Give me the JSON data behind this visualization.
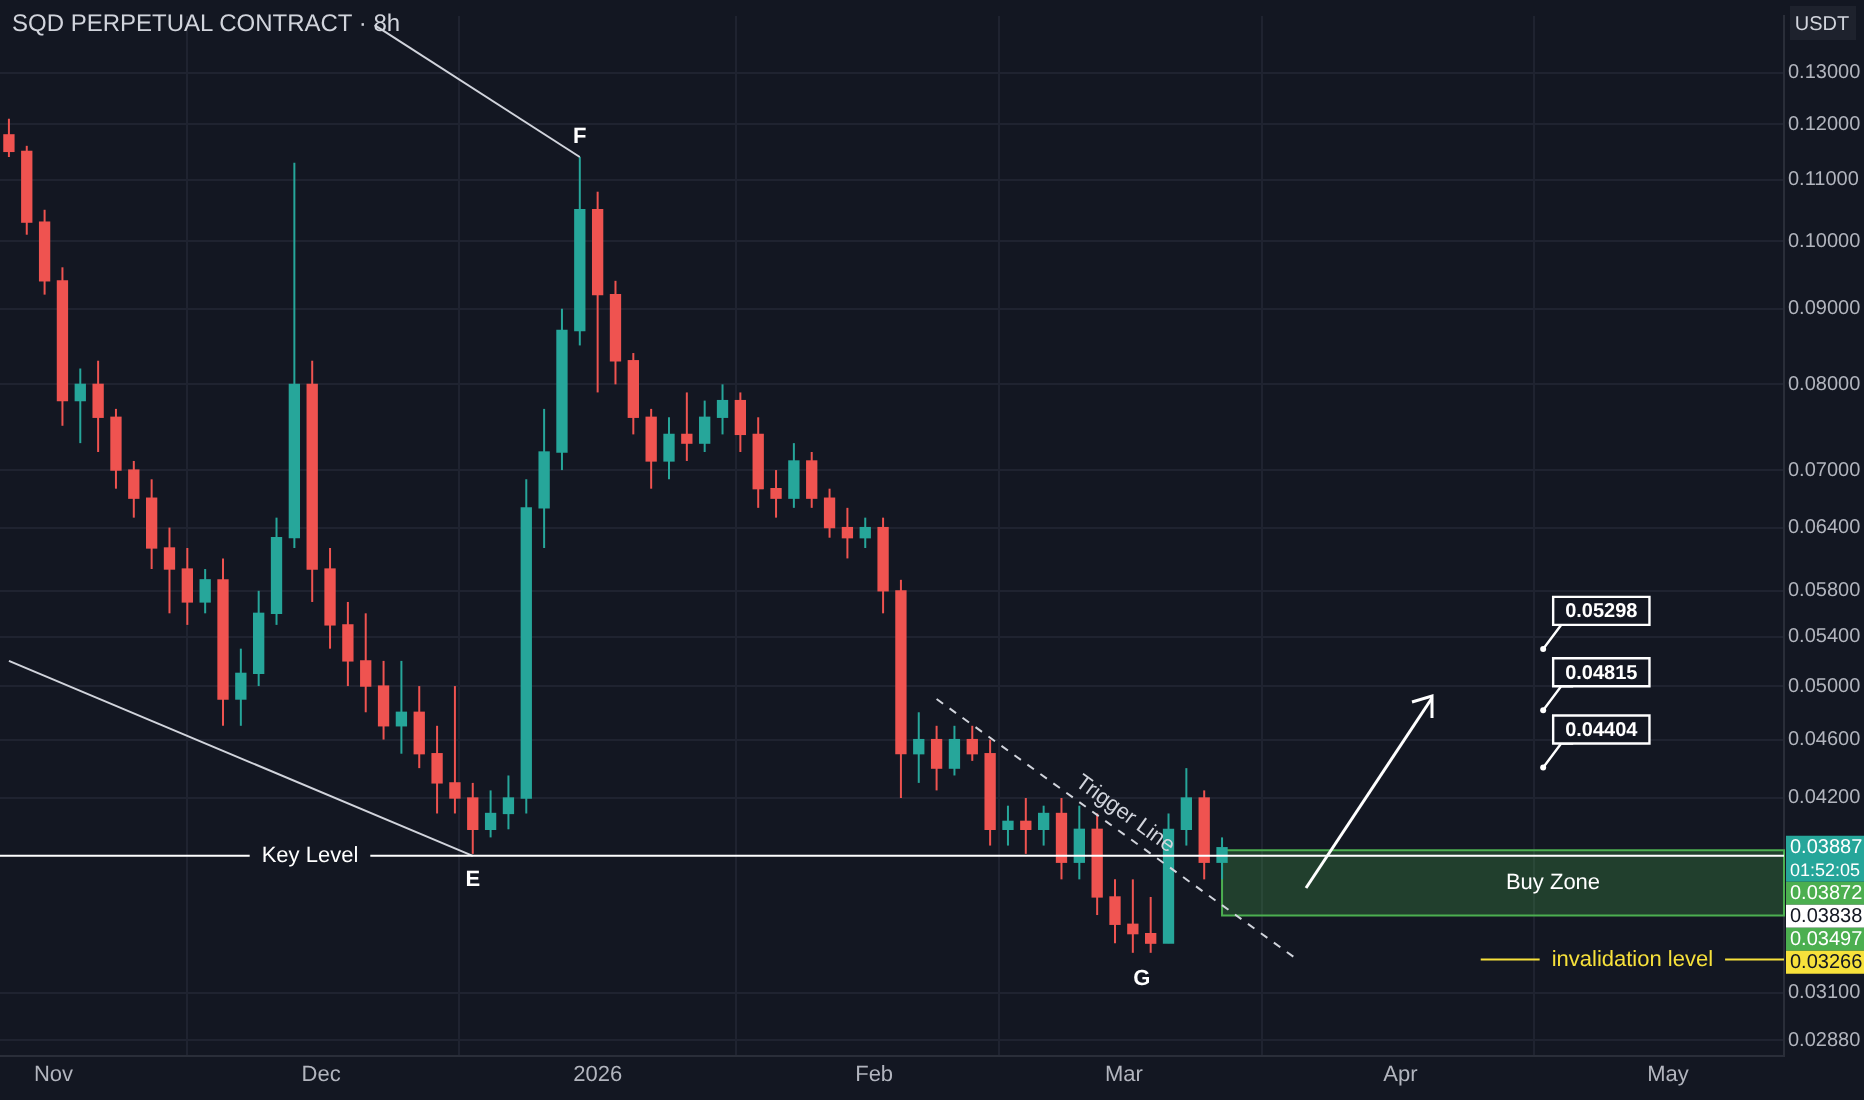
{
  "chart_data": {
    "type": "candlestick",
    "title": "SQD PERPETUAL CONTRACT · 8h",
    "ylabel": "USDT",
    "x": [
      "2025-10-27",
      "2025-10-29",
      "2025-10-31",
      "2025-11-02",
      "2025-11-04",
      "2025-11-06",
      "2025-11-08",
      "2025-11-10",
      "2025-11-12",
      "2025-11-14",
      "2025-11-16",
      "2025-11-18",
      "2025-11-20",
      "2025-11-22",
      "2025-11-24",
      "2025-11-26",
      "2025-11-28",
      "2025-11-30",
      "2025-12-02",
      "2025-12-04",
      "2025-12-06",
      "2025-12-08",
      "2025-12-10",
      "2025-12-12",
      "2025-12-14",
      "2025-12-16",
      "2025-12-18",
      "2025-12-20",
      "2025-12-22",
      "2025-12-24",
      "2025-12-26",
      "2025-12-28",
      "2025-12-30",
      "2026-01-01",
      "2026-01-03",
      "2026-01-05",
      "2026-01-07",
      "2026-01-09",
      "2026-01-11",
      "2026-01-13",
      "2026-01-15",
      "2026-01-17",
      "2026-01-19",
      "2026-01-21",
      "2026-01-23",
      "2026-01-25",
      "2026-01-27",
      "2026-01-29",
      "2026-01-31",
      "2026-02-02",
      "2026-02-04",
      "2026-02-06",
      "2026-02-08",
      "2026-02-10",
      "2026-02-12",
      "2026-02-14",
      "2026-02-16",
      "2026-02-18",
      "2026-02-20",
      "2026-02-22",
      "2026-02-24",
      "2026-02-26",
      "2026-02-28",
      "2026-03-02",
      "2026-03-04",
      "2026-03-06",
      "2026-03-08",
      "2026-03-10",
      "2026-03-12"
    ],
    "ohlc": [
      [
        0.118,
        0.121,
        0.114,
        0.115
      ],
      [
        0.115,
        0.116,
        0.101,
        0.103
      ],
      [
        0.103,
        0.105,
        0.092,
        0.094
      ],
      [
        0.094,
        0.096,
        0.075,
        0.078
      ],
      [
        0.078,
        0.082,
        0.073,
        0.08
      ],
      [
        0.08,
        0.083,
        0.072,
        0.076
      ],
      [
        0.076,
        0.077,
        0.068,
        0.07
      ],
      [
        0.07,
        0.071,
        0.065,
        0.067
      ],
      [
        0.067,
        0.069,
        0.06,
        0.062
      ],
      [
        0.062,
        0.064,
        0.056,
        0.06
      ],
      [
        0.06,
        0.062,
        0.055,
        0.057
      ],
      [
        0.057,
        0.06,
        0.056,
        0.059
      ],
      [
        0.059,
        0.061,
        0.047,
        0.049
      ],
      [
        0.049,
        0.053,
        0.047,
        0.051
      ],
      [
        0.051,
        0.058,
        0.05,
        0.056
      ],
      [
        0.056,
        0.065,
        0.055,
        0.063
      ],
      [
        0.063,
        0.113,
        0.062,
        0.08
      ],
      [
        0.08,
        0.083,
        0.057,
        0.06
      ],
      [
        0.06,
        0.062,
        0.053,
        0.055
      ],
      [
        0.055,
        0.057,
        0.05,
        0.052
      ],
      [
        0.052,
        0.056,
        0.048,
        0.05
      ],
      [
        0.05,
        0.052,
        0.046,
        0.047
      ],
      [
        0.047,
        0.052,
        0.045,
        0.048
      ],
      [
        0.048,
        0.05,
        0.044,
        0.045
      ],
      [
        0.045,
        0.047,
        0.041,
        0.043
      ],
      [
        0.043,
        0.05,
        0.041,
        0.042
      ],
      [
        0.042,
        0.043,
        0.0385,
        0.04
      ],
      [
        0.04,
        0.0425,
        0.0395,
        0.041
      ],
      [
        0.041,
        0.0435,
        0.04,
        0.042
      ],
      [
        0.042,
        0.069,
        0.041,
        0.066
      ],
      [
        0.066,
        0.077,
        0.062,
        0.072
      ],
      [
        0.072,
        0.09,
        0.07,
        0.087
      ],
      [
        0.087,
        0.114,
        0.085,
        0.105
      ],
      [
        0.105,
        0.108,
        0.079,
        0.092
      ],
      [
        0.092,
        0.094,
        0.08,
        0.083
      ],
      [
        0.083,
        0.084,
        0.074,
        0.076
      ],
      [
        0.076,
        0.077,
        0.068,
        0.071
      ],
      [
        0.071,
        0.076,
        0.069,
        0.074
      ],
      [
        0.074,
        0.079,
        0.071,
        0.073
      ],
      [
        0.073,
        0.078,
        0.072,
        0.076
      ],
      [
        0.076,
        0.08,
        0.074,
        0.078
      ],
      [
        0.078,
        0.079,
        0.072,
        0.074
      ],
      [
        0.074,
        0.076,
        0.066,
        0.068
      ],
      [
        0.068,
        0.07,
        0.065,
        0.067
      ],
      [
        0.067,
        0.073,
        0.066,
        0.071
      ],
      [
        0.071,
        0.072,
        0.066,
        0.067
      ],
      [
        0.067,
        0.068,
        0.063,
        0.064
      ],
      [
        0.064,
        0.066,
        0.061,
        0.063
      ],
      [
        0.063,
        0.065,
        0.062,
        0.064
      ],
      [
        0.064,
        0.065,
        0.056,
        0.058
      ],
      [
        0.058,
        0.059,
        0.042,
        0.045
      ],
      [
        0.045,
        0.048,
        0.043,
        0.046
      ],
      [
        0.046,
        0.047,
        0.0425,
        0.044
      ],
      [
        0.044,
        0.047,
        0.0435,
        0.046
      ],
      [
        0.046,
        0.047,
        0.0445,
        0.045
      ],
      [
        0.045,
        0.046,
        0.039,
        0.04
      ],
      [
        0.04,
        0.0415,
        0.039,
        0.0405
      ],
      [
        0.0405,
        0.042,
        0.0385,
        0.04
      ],
      [
        0.04,
        0.0415,
        0.039,
        0.041
      ],
      [
        0.041,
        0.042,
        0.037,
        0.038
      ],
      [
        0.038,
        0.0415,
        0.037,
        0.04
      ],
      [
        0.04,
        0.041,
        0.035,
        0.036
      ],
      [
        0.036,
        0.037,
        0.0335,
        0.0345
      ],
      [
        0.0345,
        0.037,
        0.033,
        0.034
      ],
      [
        0.034,
        0.036,
        0.033,
        0.0335
      ],
      [
        0.0335,
        0.041,
        0.0335,
        0.04
      ],
      [
        0.04,
        0.044,
        0.039,
        0.042
      ],
      [
        0.042,
        0.0425,
        0.037,
        0.038
      ],
      [
        0.038,
        0.0395,
        0.037,
        0.03887
      ]
    ],
    "colors": [
      "#ef5350",
      "#ef5350",
      "#ef5350",
      "#ef5350",
      "#26a69a",
      "#ef5350",
      "#ef5350",
      "#ef5350",
      "#ef5350",
      "#ef5350",
      "#ef5350",
      "#26a69a",
      "#ef5350",
      "#26a69a",
      "#26a69a",
      "#26a69a",
      "#26a69a",
      "#ef5350",
      "#ef5350",
      "#ef5350",
      "#ef5350",
      "#ef5350",
      "#26a69a",
      "#ef5350",
      "#ef5350",
      "#ef5350",
      "#ef5350",
      "#26a69a",
      "#26a69a",
      "#26a69a",
      "#26a69a",
      "#26a69a",
      "#26a69a",
      "#ef5350",
      "#ef5350",
      "#ef5350",
      "#ef5350",
      "#26a69a",
      "#ef5350",
      "#26a69a",
      "#26a69a",
      "#ef5350",
      "#ef5350",
      "#ef5350",
      "#26a69a",
      "#ef5350",
      "#ef5350",
      "#ef5350",
      "#26a69a",
      "#ef5350",
      "#ef5350",
      "#26a69a",
      "#ef5350",
      "#26a69a",
      "#ef5350",
      "#ef5350",
      "#26a69a",
      "#ef5350",
      "#26a69a",
      "#ef5350",
      "#26a69a",
      "#ef5350",
      "#ef5350",
      "#ef5350",
      "#ef5350",
      "#26a69a",
      "#26a69a",
      "#ef5350",
      "#26a69a"
    ],
    "series": [
      {
        "type": "line",
        "color": "#d1d4dc",
        "x": [
          "2025-12-07",
          "2025-12-30"
        ],
        "values": [
          0.14,
          0.114
        ]
      },
      {
        "type": "line",
        "color": "#d1d4dc",
        "x": [
          "2025-10-27",
          "2025-12-18"
        ],
        "values": [
          0.052,
          0.03838
        ]
      },
      {
        "type": "line",
        "name": "Trigger Line",
        "color": "#d1d4dc",
        "line_style": "dashed",
        "x": [
          "2026-02-08",
          "2026-03-20"
        ],
        "values": [
          0.049,
          0.0328
        ]
      }
    ],
    "xlim": [
      "2025-10-26",
      "2026-05-14"
    ],
    "xticks": [
      {
        "value": "2025-11-01",
        "label": "Nov"
      },
      {
        "value": "2025-12-01",
        "label": "Dec"
      },
      {
        "value": "2026-01-01",
        "label": "2026"
      },
      {
        "value": "2026-02-01",
        "label": "Feb"
      },
      {
        "value": "2026-03-01",
        "label": "Mar"
      },
      {
        "value": "2026-04-01",
        "label": "Apr"
      },
      {
        "value": "2026-05-01",
        "label": "May"
      }
    ],
    "ylim": [
      0.0281,
      0.142
    ],
    "log": true,
    "yticks": [
      {
        "value": 0.13,
        "label": "0.13000"
      },
      {
        "value": 0.12,
        "label": "0.12000"
      },
      {
        "value": 0.11,
        "label": "0.11000"
      },
      {
        "value": 0.1,
        "label": "0.10000"
      },
      {
        "value": 0.09,
        "label": "0.09000"
      },
      {
        "value": 0.08,
        "label": "0.08000"
      },
      {
        "value": 0.07,
        "label": "0.07000"
      },
      {
        "value": 0.064,
        "label": "0.06400"
      },
      {
        "value": 0.058,
        "label": "0.05800"
      },
      {
        "value": 0.054,
        "label": "0.05400"
      },
      {
        "value": 0.05,
        "label": "0.05000"
      },
      {
        "value": 0.046,
        "label": "0.04600"
      },
      {
        "value": 0.042,
        "label": "0.04200"
      },
      {
        "value": 0.031,
        "label": "0.03100"
      },
      {
        "value": 0.0288,
        "label": "0.02880"
      }
    ],
    "grid": true,
    "ref_lines": [
      {
        "axis": "y",
        "value": 0.03838,
        "label": "Key Level",
        "color": "#ffffff"
      },
      {
        "axis": "y",
        "value": 0.03266,
        "label": "invalidation level",
        "color": "#f7e13b"
      }
    ],
    "bands": [
      {
        "axis": "y",
        "from": 0.03497,
        "to": 0.03872,
        "label": "Buy Zone",
        "color": "#4caf50"
      }
    ],
    "annotations": [
      {
        "text": "F",
        "x": "2025-12-30",
        "y": 0.114
      },
      {
        "text": "E",
        "x": "2025-12-18",
        "y": 0.0385
      },
      {
        "text": "G",
        "x": "2026-03-03",
        "y": 0.033
      },
      {
        "text": "0.05298",
        "x": "2026-04-17",
        "y": 0.05298
      },
      {
        "text": "0.04815",
        "x": "2026-04-17",
        "y": 0.04815
      },
      {
        "text": "0.04404",
        "x": "2026-04-17",
        "y": 0.04404
      },
      "01:52:05",
      "0.03887",
      "0.03872",
      "0.03838",
      "0.03497",
      "0.03266"
    ]
  }
}
